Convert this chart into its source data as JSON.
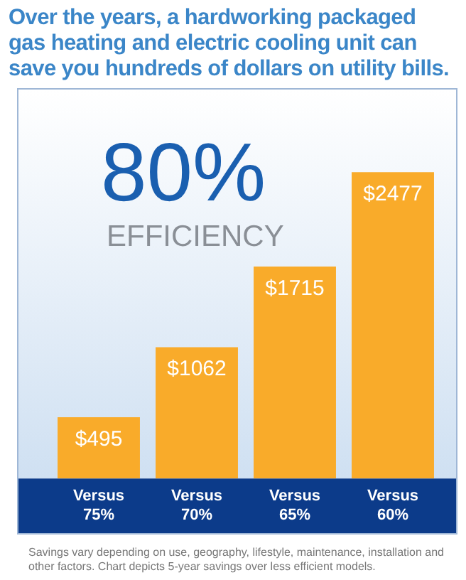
{
  "chart_data": {
    "type": "bar",
    "title": "Over the years, a hardworking packaged gas heating and electric cooling unit can save you hundreds of dollars on utility bills.",
    "categories": [
      "Versus 75%",
      "Versus 70%",
      "Versus 65%",
      "Versus 60%"
    ],
    "values": [
      495,
      1062,
      1715,
      2477
    ],
    "color": "#f9ab2a",
    "value_labels": [
      "$495",
      "$1062",
      "$1715",
      "$2477"
    ],
    "annotations": [
      "80%",
      "EFFICIENCY",
      "Savings vary depending on use, geography, lifestyle, maintenance, installation and other factors. Chart depicts 5-year savings over less efficient models."
    ],
    "grid": false,
    "legend": false
  }
}
